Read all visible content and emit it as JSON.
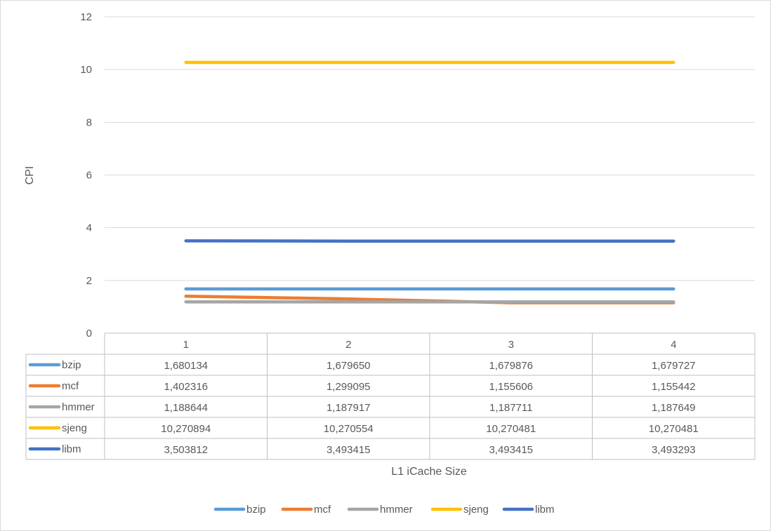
{
  "chart_data": {
    "type": "line",
    "title": "",
    "xlabel": "L1 iCache Size",
    "ylabel": "CPI",
    "ylim": [
      0,
      12
    ],
    "yticks": [
      "0",
      "2",
      "4",
      "6",
      "8",
      "10",
      "12"
    ],
    "grid": true,
    "legend_position": "bottom",
    "data_table": true,
    "categories": [
      "1",
      "2",
      "3",
      "4"
    ],
    "series": [
      {
        "name": "bzip",
        "color": "#5b9bd5",
        "values": [
          1.680134,
          1.67965,
          1.679876,
          1.679727
        ],
        "labels": [
          "1,680134",
          "1,679650",
          "1,679876",
          "1,679727"
        ]
      },
      {
        "name": "mcf",
        "color": "#ed7d31",
        "values": [
          1.402316,
          1.299095,
          1.155606,
          1.155442
        ],
        "labels": [
          "1,402316",
          "1,299095",
          "1,155606",
          "1,155442"
        ]
      },
      {
        "name": "hmmer",
        "color": "#a5a5a5",
        "values": [
          1.188644,
          1.187917,
          1.187711,
          1.187649
        ],
        "labels": [
          "1,188644",
          "1,187917",
          "1,187711",
          "1,187649"
        ]
      },
      {
        "name": "sjeng",
        "color": "#ffc000",
        "values": [
          10.270894,
          10.270554,
          10.270481,
          10.270481
        ],
        "labels": [
          "10,270894",
          "10,270554",
          "10,270481",
          "10,270481"
        ]
      },
      {
        "name": "libm",
        "color": "#4472c4",
        "values": [
          3.503812,
          3.493415,
          3.493415,
          3.493293
        ],
        "labels": [
          "3,503812",
          "3,493415",
          "3,493415",
          "3,493293"
        ]
      }
    ]
  }
}
